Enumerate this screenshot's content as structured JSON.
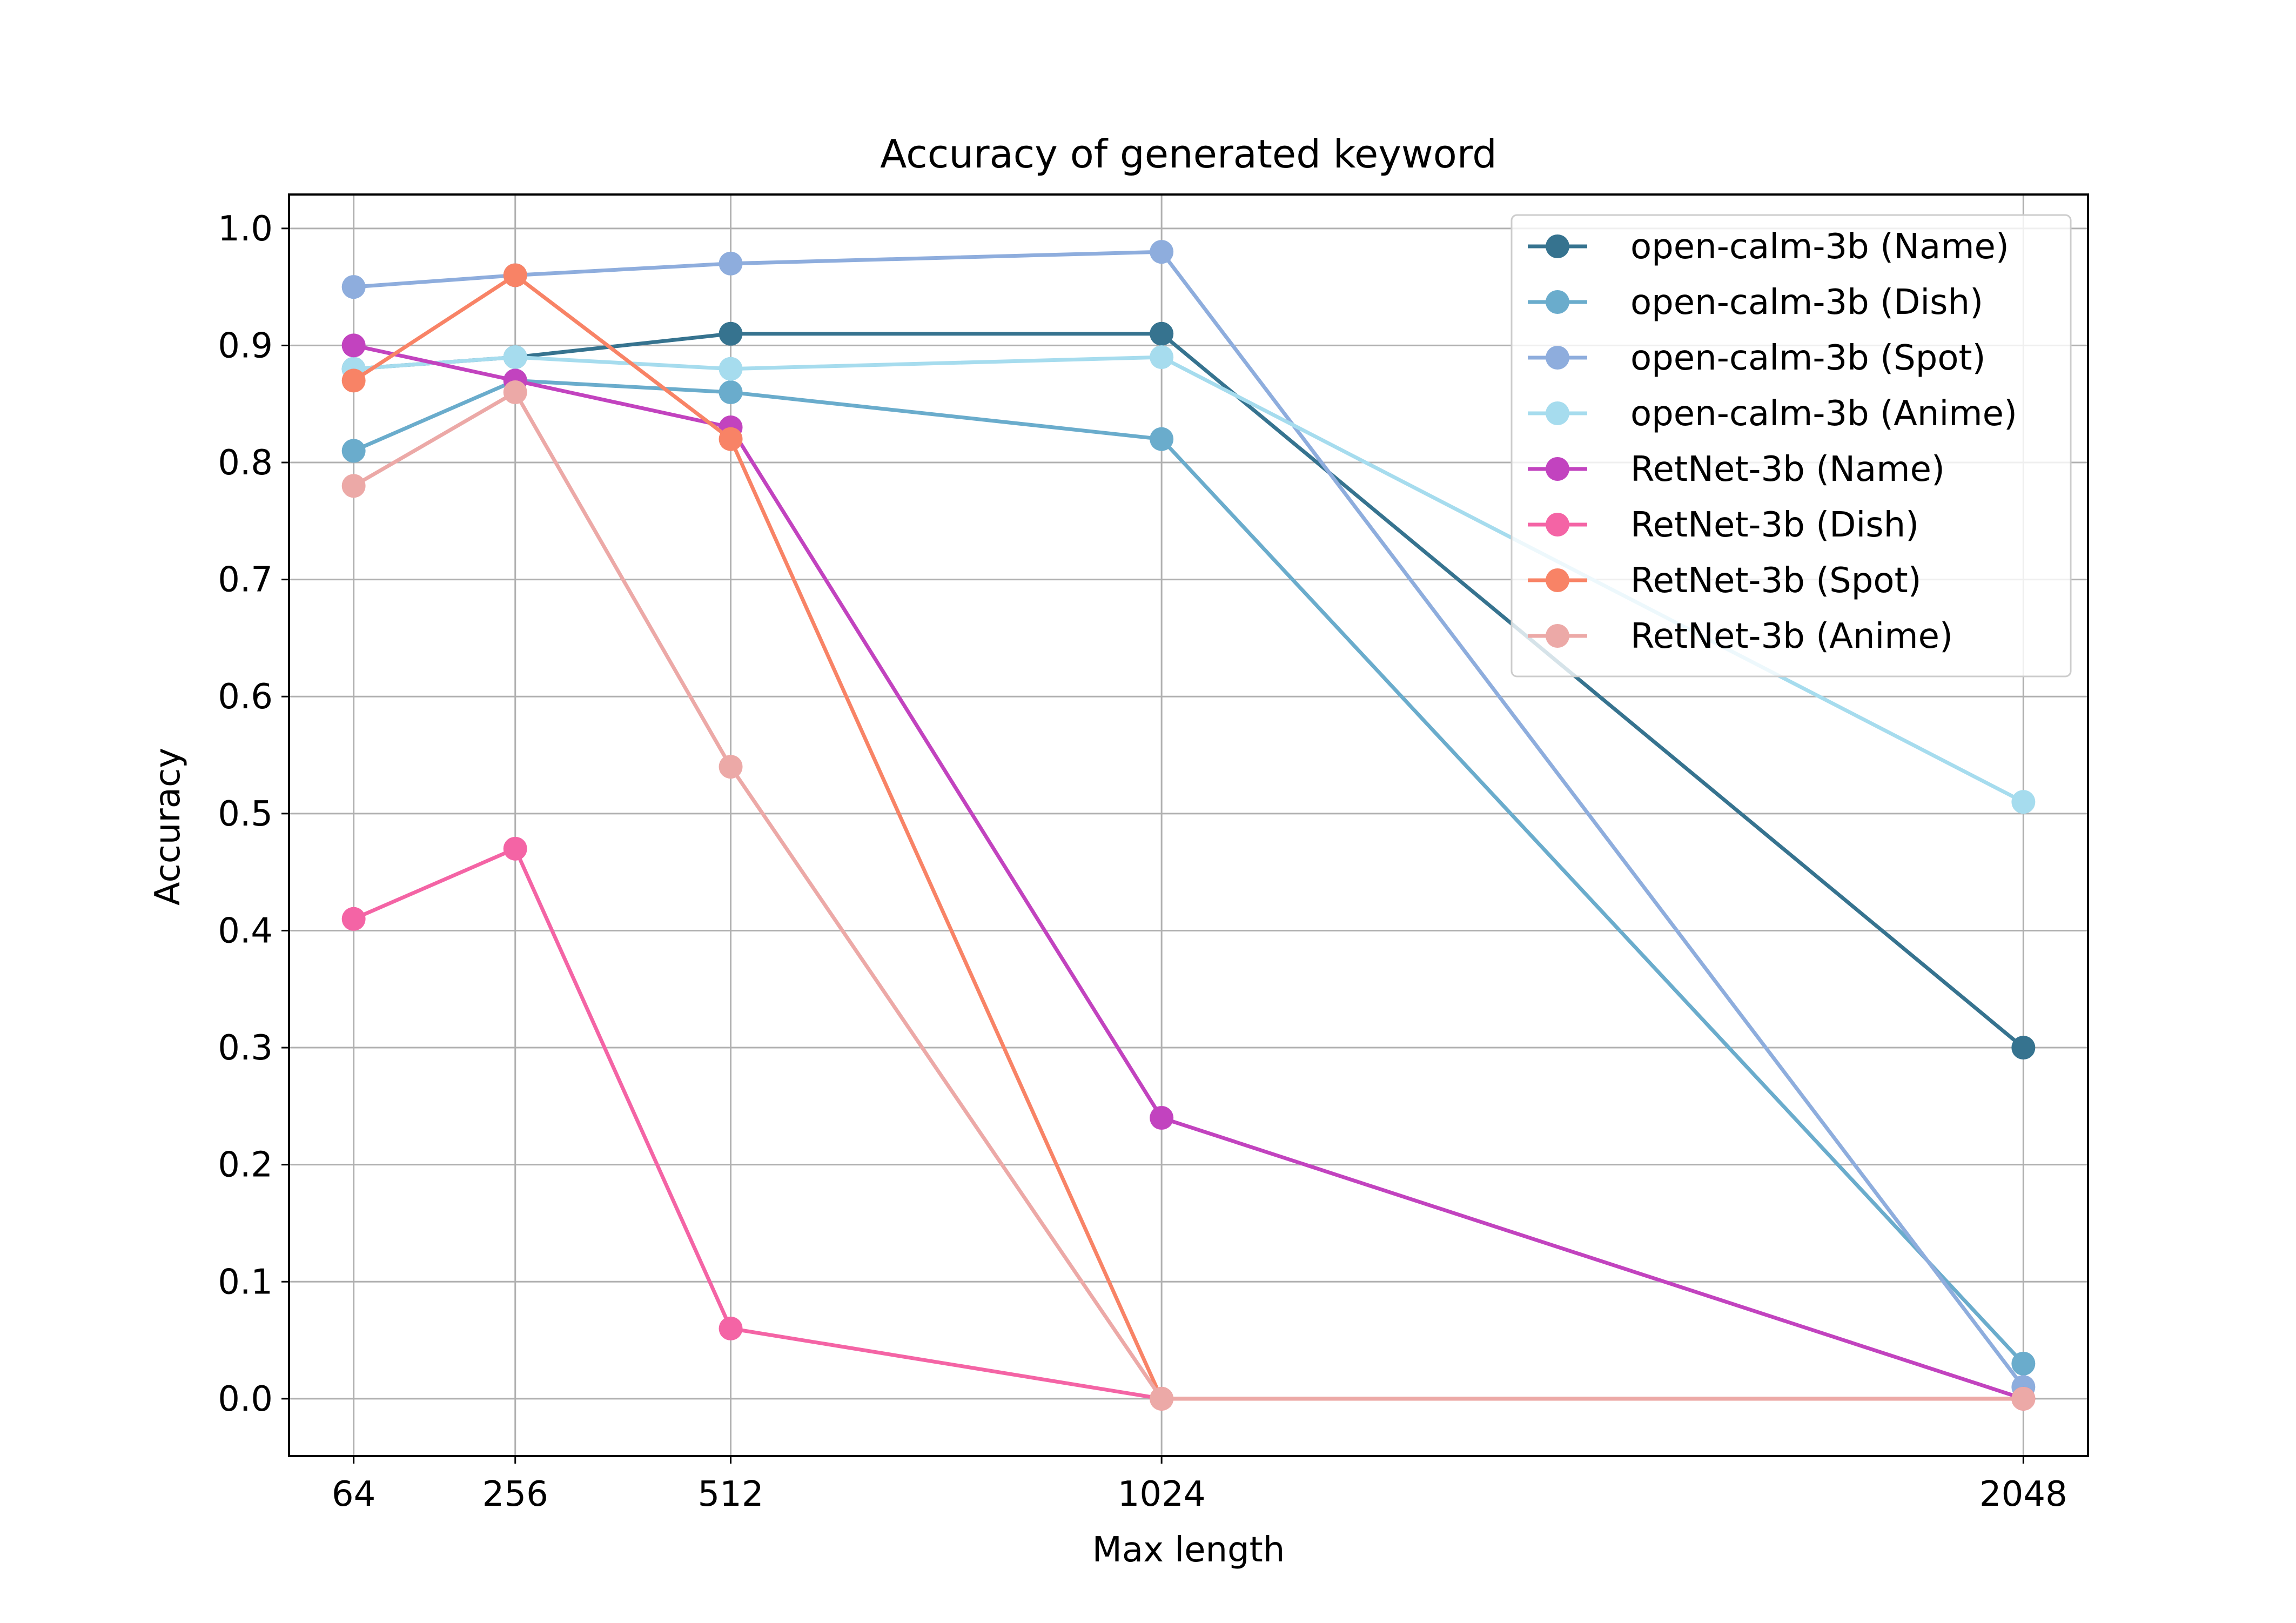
{
  "chart_data": {
    "type": "line",
    "title": "Accuracy of generated keyword",
    "xlabel": "Max length",
    "ylabel": "Accuracy",
    "x": [
      64,
      256,
      512,
      1024,
      2048
    ],
    "x_tick_labels": [
      "64",
      "256",
      "512",
      "1024",
      "2048"
    ],
    "y_ticks": [
      0.0,
      0.1,
      0.2,
      0.3,
      0.4,
      0.5,
      0.6,
      0.7,
      0.8,
      0.9,
      1.0
    ],
    "y_tick_labels": [
      "0.0",
      "0.1",
      "0.2",
      "0.3",
      "0.4",
      "0.5",
      "0.6",
      "0.7",
      "0.8",
      "0.9",
      "1.0"
    ],
    "xlim": [
      -12.8,
      2124.8
    ],
    "ylim": [
      -0.049,
      1.029
    ],
    "grid": true,
    "legend_position": "top-right",
    "series": [
      {
        "name": "open-calm-3b (Name)",
        "color": "#36738f",
        "values": [
          0.88,
          0.89,
          0.91,
          0.91,
          0.3
        ]
      },
      {
        "name": "open-calm-3b (Dish)",
        "color": "#6aaccc",
        "values": [
          0.81,
          0.87,
          0.86,
          0.82,
          0.03
        ]
      },
      {
        "name": "open-calm-3b (Spot)",
        "color": "#8eaddd",
        "values": [
          0.95,
          0.96,
          0.97,
          0.98,
          0.01
        ]
      },
      {
        "name": "open-calm-3b (Anime)",
        "color": "#a6dcee",
        "values": [
          0.88,
          0.89,
          0.88,
          0.89,
          0.51
        ]
      },
      {
        "name": "RetNet-3b (Name)",
        "color": "#c243bf",
        "values": [
          0.9,
          0.87,
          0.83,
          0.24,
          0.0
        ]
      },
      {
        "name": "RetNet-3b (Dish)",
        "color": "#f464a5",
        "values": [
          0.41,
          0.47,
          0.06,
          0.0,
          0.0
        ]
      },
      {
        "name": "RetNet-3b (Spot)",
        "color": "#f88366",
        "values": [
          0.87,
          0.96,
          0.82,
          0.0,
          0.0
        ]
      },
      {
        "name": "RetNet-3b (Anime)",
        "color": "#eca9a7",
        "values": [
          0.78,
          0.86,
          0.54,
          0.0,
          0.0
        ]
      }
    ]
  }
}
